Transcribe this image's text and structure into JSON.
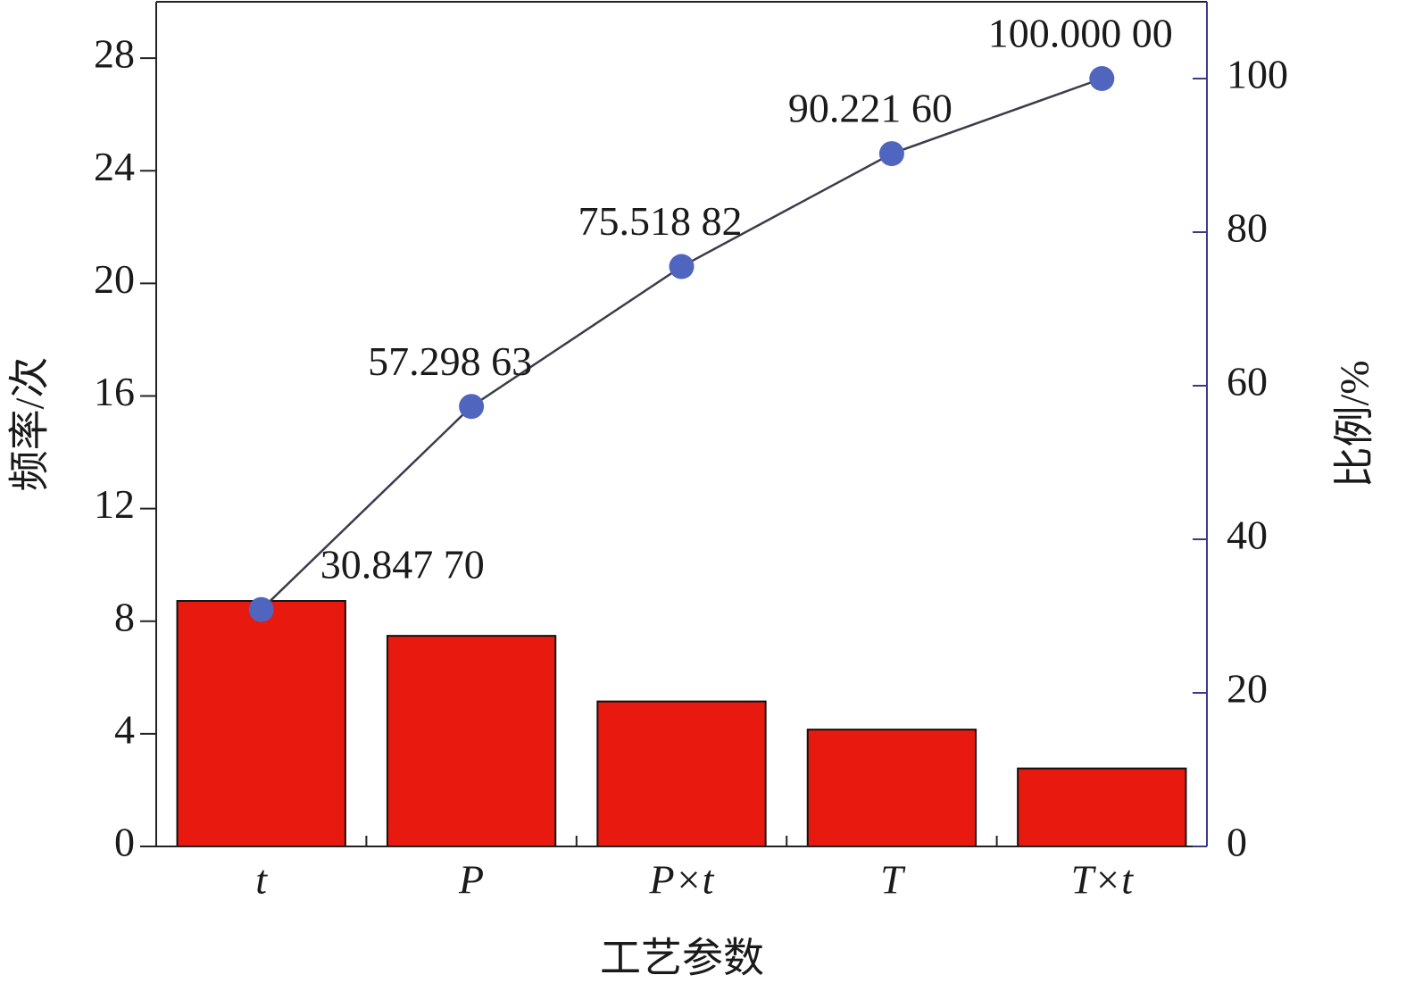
{
  "chart_data": {
    "type": "bar",
    "x_label": "工艺参数",
    "y_label": "频率/次",
    "y2_label": "比例/%",
    "categories": [
      "t",
      "P",
      "P×t",
      "T",
      "T×t"
    ],
    "series": [
      {
        "type": "bar",
        "color": "#e8190f",
        "values": [
          8.72,
          7.48,
          5.15,
          4.15,
          2.77
        ]
      },
      {
        "type": "line",
        "axis": "y2",
        "color": "#4f65be",
        "line_color": "#3c3c4a",
        "values": [
          30.8477,
          57.29863,
          75.51882,
          90.2216,
          100
        ],
        "value_labels": [
          "30.847 70",
          "57.298 63",
          "75.518 82",
          "90.221 60",
          "100.000 00"
        ]
      }
    ],
    "ylim": [
      0,
      30
    ],
    "yticks": [
      0,
      4,
      8,
      12,
      16,
      20,
      24,
      28
    ],
    "y2lim": [
      0,
      110
    ],
    "y2ticks": [
      0,
      20,
      40,
      60,
      80,
      100
    ],
    "y2_color": "#3a3a86",
    "grid": false
  }
}
